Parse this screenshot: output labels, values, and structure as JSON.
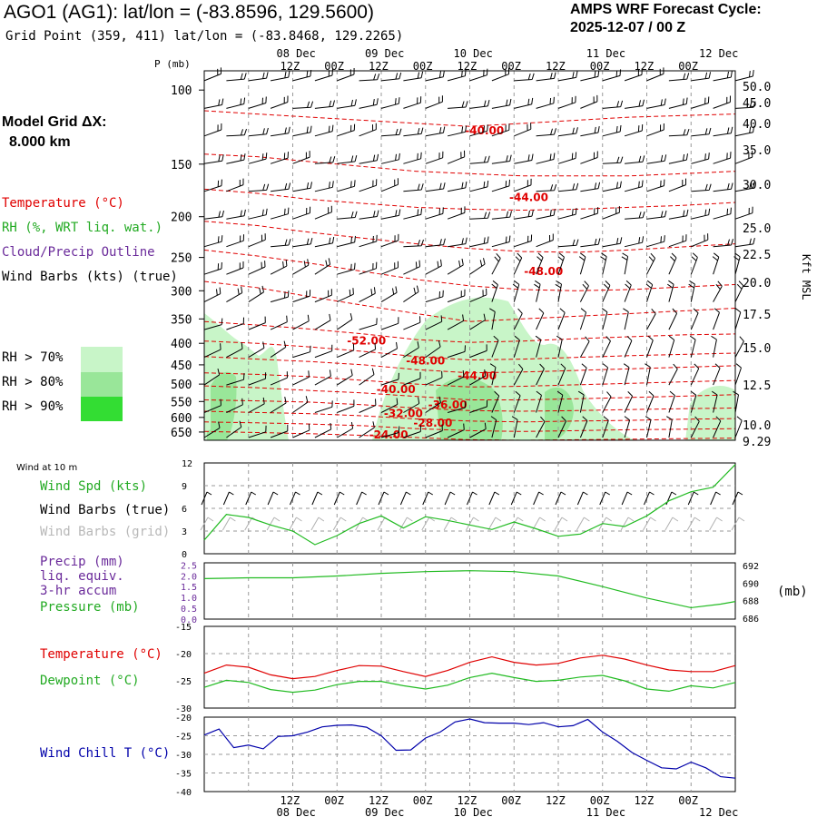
{
  "header": {
    "title": "AGO1 (AG1):  lat/lon = (-83.8596, 129.5600)",
    "grid_point": "Grid Point (359, 411) lat/lon = (-83.8468, 129.2265)",
    "cycle_label": "AMPS WRF Forecast Cycle:",
    "cycle_value": "2025-12-07 / 00  Z"
  },
  "side_labels": {
    "model_grid_1": "Model Grid ΔX:",
    "model_grid_2": "8.000 km",
    "temperature": "Temperature (°C)",
    "rh": "RH (%, WRT liq. wat.)",
    "cloud": "Cloud/Precip Outline",
    "barbs": "Wind Barbs (kts) (true)",
    "rh70": "RH > 70%",
    "rh80": "RH > 80%",
    "rh90": "RH > 90%",
    "wind10": "Wind at 10 m",
    "wind_spd": "Wind Spd (kts)",
    "barbs_true": "Wind Barbs (true)",
    "barbs_grid": "Wind Barbs (grid)",
    "precip1": "Precip (mm)",
    "precip2": "liq. equiv.",
    "precip3": "3-hr accum",
    "pressure": "Pressure (mb)",
    "pressure_unit": "(mb)",
    "temp2": "Temperature (°C)",
    "dew": "Dewpoint (°C)",
    "windchill": "Wind Chill T (°C)",
    "p_axis": "P (mb)",
    "kft": "Kft MSL"
  },
  "colors": {
    "temp": "#e00000",
    "dew": "#22bb22",
    "wind": "#22bb22",
    "pressure": "#22bb22",
    "windchill": "#0000aa",
    "precip": "#6a2a9a",
    "rh70": "#c8f5c8",
    "rh80": "#99e699",
    "rh90": "#33dd33",
    "grid_barbs": "#b0b0b0",
    "grid": "#999999"
  },
  "chart_data": [
    {
      "type": "heatmap",
      "name": "upper-air cross-section",
      "x_hours": [
        0,
        72
      ],
      "pressure_levels": [
        100,
        150,
        200,
        250,
        300,
        350,
        400,
        450,
        500,
        550,
        600,
        650
      ],
      "height_kft_labels": [
        "50.0",
        "45.0",
        "40.0",
        "35.0",
        "30.0",
        "25.0",
        "22.5",
        "20.0",
        "17.5",
        "15.0",
        "12.5",
        "10.0",
        "9.29"
      ],
      "top_time_labels": [
        "12Z",
        "00Z",
        "12Z",
        "00Z",
        "12Z",
        "00Z",
        "12Z",
        "00Z",
        "12Z",
        "00Z"
      ],
      "top_date_labels": [
        "08 Dec",
        "09 Dec",
        "10 Dec",
        "11 Dec",
        "12 Dec"
      ],
      "isotherm_labels": [
        {
          "text": "-40.00",
          "hour": 38,
          "p": 125
        },
        {
          "text": "-44.00",
          "hour": 44,
          "p": 180
        },
        {
          "text": "-48.00",
          "hour": 46,
          "p": 270
        },
        {
          "text": "-52.00",
          "hour": 22,
          "p": 395
        },
        {
          "text": "-48.00",
          "hour": 30,
          "p": 440
        },
        {
          "text": "-44.00",
          "hour": 37,
          "p": 478
        },
        {
          "text": "-40.00",
          "hour": 26,
          "p": 515
        },
        {
          "text": "-36.00",
          "hour": 33,
          "p": 560
        },
        {
          "text": "-32.00",
          "hour": 27,
          "p": 588
        },
        {
          "text": "-28.00",
          "hour": 31,
          "p": 618
        },
        {
          "text": "-24.00",
          "hour": 25,
          "p": 660
        }
      ],
      "isotherms": [
        {
          "p": [
            112,
            114,
            116,
            118,
            120,
            122,
            120,
            118,
            116,
            115,
            114
          ]
        },
        {
          "p": [
            142,
            144,
            148,
            152,
            156,
            158,
            160,
            160,
            160,
            158,
            156
          ]
        },
        {
          "p": [
            172,
            176,
            182,
            186,
            190,
            192,
            193,
            192,
            190,
            188,
            185
          ]
        },
        {
          "p": [
            205,
            210,
            218,
            225,
            232,
            238,
            242,
            243,
            240,
            236,
            232
          ]
        },
        {
          "p": [
            240,
            248,
            258,
            270,
            282,
            292,
            298,
            300,
            298,
            294,
            290
          ]
        },
        {
          "p": [
            285,
            295,
            310,
            325,
            340,
            355,
            350,
            345,
            340,
            335,
            330
          ]
        },
        {
          "p": [
            355,
            362,
            370,
            380,
            392,
            398,
            395,
            390,
            386,
            382,
            380
          ]
        },
        {
          "p": [
            395,
            400,
            408,
            418,
            430,
            438,
            436,
            432,
            428,
            425,
            422
          ]
        },
        {
          "p": [
            430,
            436,
            442,
            450,
            462,
            470,
            468,
            464,
            460,
            456,
            452
          ]
        },
        {
          "p": [
            470,
            474,
            480,
            490,
            500,
            508,
            506,
            502,
            498,
            494,
            490
          ]
        },
        {
          "p": [
            505,
            510,
            518,
            525,
            535,
            545,
            545,
            542,
            538,
            534,
            530
          ]
        },
        {
          "p": [
            545,
            548,
            552,
            560,
            570,
            578,
            580,
            578,
            575,
            572,
            570
          ]
        },
        {
          "p": [
            580,
            584,
            588,
            595,
            605,
            612,
            615,
            612,
            610,
            606,
            604
          ]
        },
        {
          "p": [
            615,
            618,
            622,
            628,
            638,
            645,
            648,
            645,
            642,
            640,
            638
          ]
        },
        {
          "p": [
            648,
            652,
            656,
            662,
            670,
            678,
            680,
            678,
            676,
            674,
            672
          ]
        }
      ]
    },
    {
      "type": "line",
      "name": "10 m wind speed",
      "ylabel": "Wind Spd (kts)",
      "ylim": [
        0,
        12
      ],
      "ytick_labels": [
        "12",
        "9",
        "6",
        "3",
        "0"
      ],
      "x_hours": [
        0,
        3,
        6,
        9,
        12,
        15,
        18,
        21,
        24,
        27,
        30,
        33,
        36,
        39,
        42,
        45,
        48,
        51,
        54,
        57,
        60,
        63,
        66,
        69,
        72
      ],
      "values": [
        1.8,
        5.2,
        4.8,
        3.8,
        3.0,
        1.2,
        2.4,
        4.0,
        5.0,
        3.4,
        4.9,
        4.4,
        3.8,
        3.2,
        4.2,
        3.3,
        2.3,
        2.6,
        4.0,
        3.6,
        5.0,
        7.0,
        8.2,
        8.8,
        11.8
      ]
    },
    {
      "type": "line",
      "name": "surface pressure",
      "ylabel": "Pressure (mb)",
      "ylim": [
        686,
        692
      ],
      "ytick_labels_right": [
        "692",
        "690",
        "688",
        "686"
      ],
      "ytick_labels_left": [
        "2.5",
        "2.0",
        "1.5",
        "1.0",
        "0.5",
        "0.0"
      ],
      "x_hours": [
        0,
        6,
        12,
        18,
        24,
        30,
        36,
        42,
        48,
        54,
        60,
        66,
        70,
        72
      ],
      "values": [
        690.5,
        690.6,
        690.6,
        690.8,
        691.1,
        691.3,
        691.4,
        691.3,
        690.8,
        689.6,
        688.3,
        687.2,
        687.6,
        687.9
      ]
    },
    {
      "type": "line",
      "name": "temperature and dewpoint",
      "ylim": [
        -30,
        -15
      ],
      "ytick_labels": [
        "-15",
        "-20",
        "-25",
        "-30"
      ],
      "x_hours": [
        0,
        3,
        6,
        9,
        12,
        15,
        18,
        21,
        24,
        27,
        30,
        33,
        36,
        39,
        42,
        45,
        48,
        51,
        54,
        57,
        60,
        63,
        66,
        69,
        72
      ],
      "series": [
        {
          "name": "Temperature (°C)",
          "values": [
            -23.6,
            -22.1,
            -22.5,
            -23.9,
            -24.6,
            -24.2,
            -23.1,
            -22.2,
            -22.3,
            -23.3,
            -24.2,
            -23.1,
            -21.6,
            -20.6,
            -21.6,
            -22.1,
            -21.8,
            -20.8,
            -20.3,
            -21.0,
            -22.1,
            -23.0,
            -23.3,
            -23.3,
            -22.2
          ]
        },
        {
          "name": "Dewpoint (°C)",
          "values": [
            -26.2,
            -24.9,
            -25.3,
            -26.6,
            -27.1,
            -26.7,
            -25.7,
            -25.1,
            -25.1,
            -25.9,
            -26.5,
            -25.8,
            -24.4,
            -23.6,
            -24.4,
            -25.1,
            -24.9,
            -24.3,
            -24.0,
            -25.0,
            -26.5,
            -26.9,
            -25.9,
            -26.3,
            -25.3
          ]
        }
      ]
    },
    {
      "type": "line",
      "name": "wind chill",
      "ylabel": "Wind Chill T (°C)",
      "ylim": [
        -40,
        -20
      ],
      "ytick_labels": [
        "-20",
        "-25",
        "-30",
        "-35",
        "-40"
      ],
      "x_hours": [
        0,
        2,
        4,
        6,
        8,
        10,
        12,
        14,
        16,
        18,
        20,
        22,
        24,
        26,
        28,
        30,
        32,
        34,
        36,
        38,
        40,
        42,
        44,
        46,
        48,
        50,
        52,
        54,
        56,
        58,
        60,
        62,
        64,
        66,
        68,
        70,
        72
      ],
      "values": [
        -24.8,
        -23.2,
        -28.2,
        -27.5,
        -28.5,
        -25.2,
        -25.0,
        -24.0,
        -22.6,
        -22.2,
        -22.1,
        -22.7,
        -25.0,
        -28.9,
        -28.8,
        -25.6,
        -24.0,
        -21.3,
        -20.5,
        -21.5,
        -21.6,
        -21.6,
        -22.0,
        -21.5,
        -22.6,
        -22.3,
        -20.6,
        -24.0,
        -26.5,
        -29.5,
        -31.6,
        -33.6,
        -33.9,
        -32.1,
        -33.6,
        -36.0,
        -36.4
      ]
    }
  ],
  "bottom_axis": {
    "time_labels": [
      "12Z",
      "00Z",
      "12Z",
      "00Z",
      "12Z",
      "00Z",
      "12Z",
      "00Z",
      "12Z",
      "00Z"
    ],
    "date_labels": [
      "08 Dec",
      "09 Dec",
      "10 Dec",
      "11 Dec",
      "12 Dec"
    ]
  }
}
